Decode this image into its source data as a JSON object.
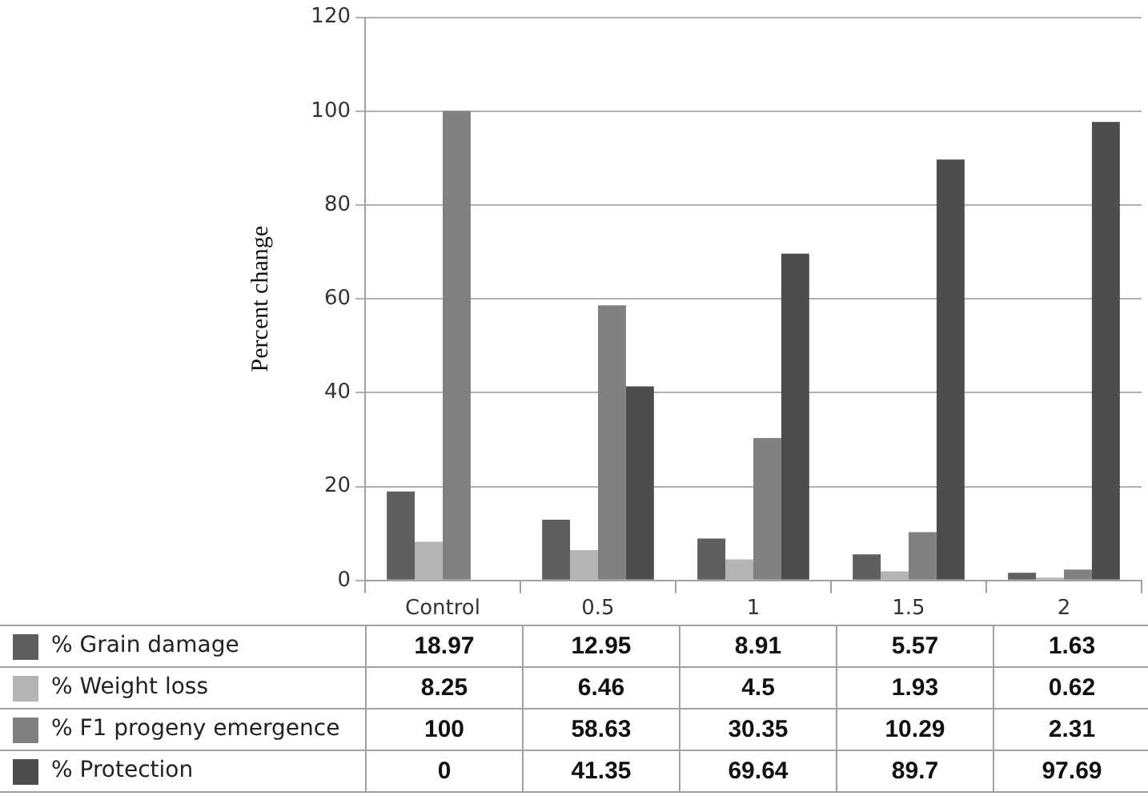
{
  "chart_data": {
    "type": "bar",
    "ylabel": "Percent change",
    "categories": [
      "Control",
      "0.5",
      "1",
      "1.5",
      "2"
    ],
    "series": [
      {
        "name": "% Grain damage",
        "color": "#5f5f5f",
        "values": [
          18.97,
          12.95,
          8.91,
          5.57,
          1.63
        ]
      },
      {
        "name": "% Weight loss",
        "color": "#b4b4b4",
        "values": [
          8.25,
          6.46,
          4.5,
          1.93,
          0.62
        ]
      },
      {
        "name": "% F1 progeny emergence",
        "color": "#808080",
        "values": [
          100,
          58.63,
          30.35,
          10.29,
          2.31
        ]
      },
      {
        "name": "% Protection",
        "color": "#4d4d4d",
        "values": [
          0,
          41.35,
          69.64,
          89.7,
          97.69
        ]
      }
    ],
    "ylim": [
      0,
      120
    ],
    "yticks": [
      0,
      20,
      40,
      60,
      80,
      100,
      120
    ],
    "grid": "y",
    "legend": "bottom",
    "data_labels": true
  }
}
